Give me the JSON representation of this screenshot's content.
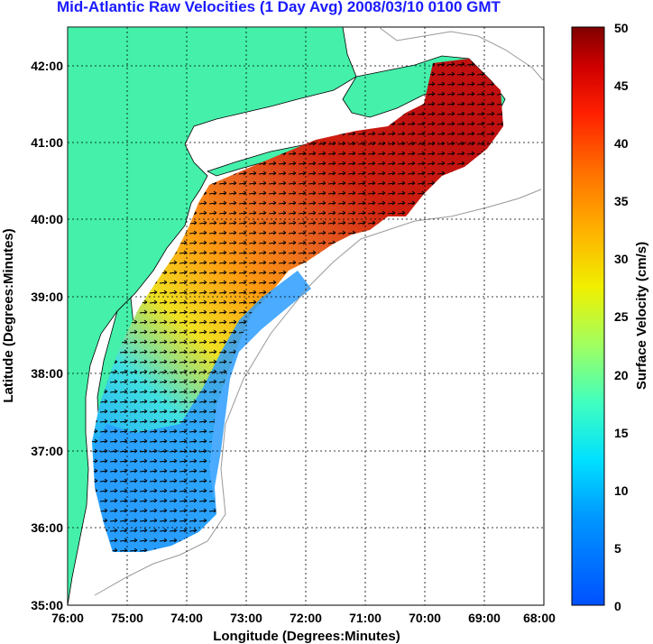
{
  "title": "Mid-Atlantic Raw Velocities (1 Day Avg) 2008/03/10 0100 GMT",
  "map": {
    "xlabel": "Longitude (Degrees:Minutes)",
    "ylabel": "Latitude (Degrees:Minutes)",
    "lon_ticks": [
      "76:00",
      "75:00",
      "74:00",
      "73:00",
      "72:00",
      "71:00",
      "70:00",
      "69:00",
      "68:00"
    ],
    "lat_ticks": [
      "42:00",
      "41:00",
      "40:00",
      "39:00",
      "38:00",
      "37:00",
      "36:00",
      "35:00"
    ],
    "land_color": "#44f0aa",
    "grid": true
  },
  "colorbar": {
    "label": "Surface Velocity (cm/s)",
    "ticks": [
      "50",
      "45",
      "40",
      "35",
      "30",
      "25",
      "20",
      "15",
      "10",
      "5",
      "0"
    ],
    "range": [
      0,
      50
    ]
  }
}
